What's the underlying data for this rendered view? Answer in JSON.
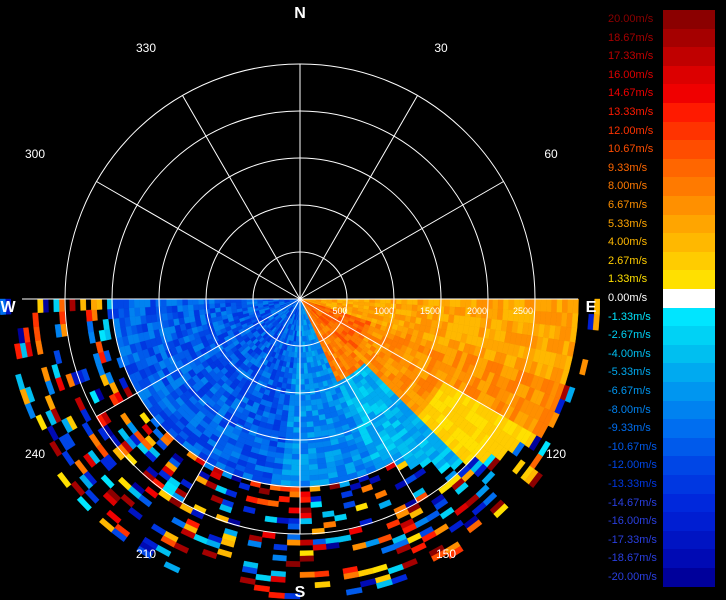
{
  "compass": {
    "north": "N",
    "south": "S",
    "east": "E",
    "west": "W"
  },
  "angle_labels": [
    "30",
    "60",
    "120",
    "150",
    "210",
    "240",
    "300",
    "330"
  ],
  "range_labels": [
    "500",
    "1000",
    "1500",
    "2000",
    "2500"
  ],
  "legend": [
    {
      "label": "20.00m/s",
      "color": "#8b0000"
    },
    {
      "label": "18.67m/s",
      "color": "#a50000"
    },
    {
      "label": "17.33m/s",
      "color": "#c00000"
    },
    {
      "label": "16.00m/s",
      "color": "#dc0000"
    },
    {
      "label": "14.67m/s",
      "color": "#f00000"
    },
    {
      "label": "13.33m/s",
      "color": "#ff1a00"
    },
    {
      "label": "12.00m/s",
      "color": "#ff3300"
    },
    {
      "label": "10.67m/s",
      "color": "#ff4d00"
    },
    {
      "label": "9.33m/s",
      "color": "#ff6600"
    },
    {
      "label": "8.00m/s",
      "color": "#ff7a00"
    },
    {
      "label": "6.67m/s",
      "color": "#ff9000"
    },
    {
      "label": "5.33m/s",
      "color": "#ffa500"
    },
    {
      "label": "4.00m/s",
      "color": "#ffb800"
    },
    {
      "label": "2.67m/s",
      "color": "#ffcc00"
    },
    {
      "label": "1.33m/s",
      "color": "#ffe000"
    },
    {
      "label": "0.00m/s",
      "color": "#ffffff"
    },
    {
      "label": "-1.33m/s",
      "color": "#00e5ff"
    },
    {
      "label": "-2.67m/s",
      "color": "#00d2f5"
    },
    {
      "label": "-4.00m/s",
      "color": "#00bff0"
    },
    {
      "label": "-5.33m/s",
      "color": "#00aaf0"
    },
    {
      "label": "-6.67m/s",
      "color": "#0096f0"
    },
    {
      "label": "-8.00m/s",
      "color": "#0082f0"
    },
    {
      "label": "-9.33m/s",
      "color": "#006ef0"
    },
    {
      "label": "-10.67m/s",
      "color": "#005aeb"
    },
    {
      "label": "-12.00m/s",
      "color": "#0046e6"
    },
    {
      "label": "-13.33m/s",
      "color": "#0037e1"
    },
    {
      "label": "-14.67m/s",
      "color": "#0028dc"
    },
    {
      "label": "-16.00m/s",
      "color": "#001ed2"
    },
    {
      "label": "-17.33m/s",
      "color": "#0014c3"
    },
    {
      "label": "-18.67m/s",
      "color": "#000ab4"
    },
    {
      "label": "-20.00m/s",
      "color": "#00009b"
    }
  ]
}
